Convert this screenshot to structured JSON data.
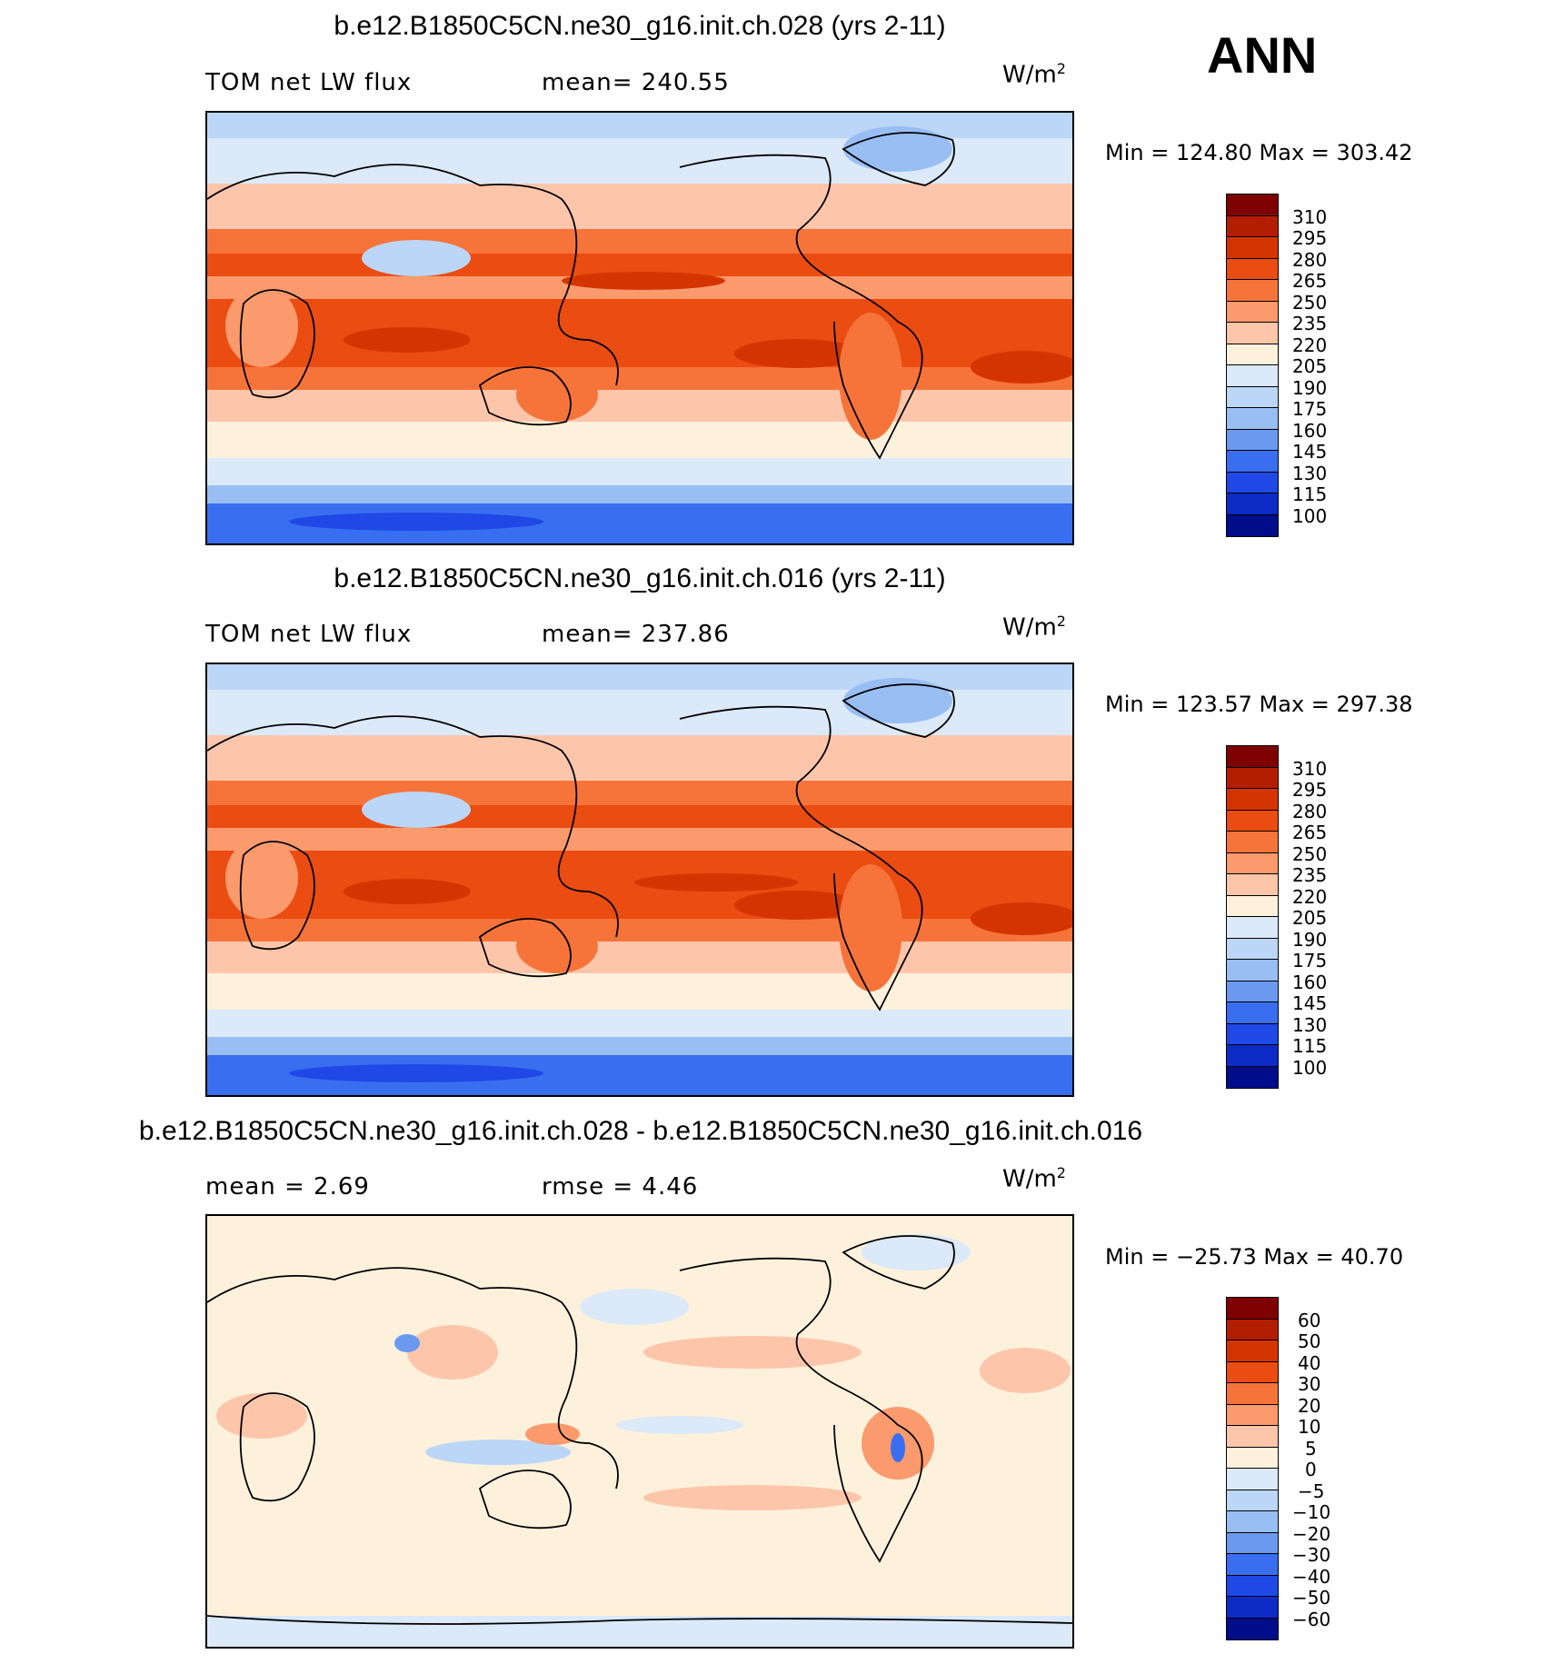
{
  "season": "ANN",
  "units_base": "W/m",
  "units_exp": "2",
  "panels": [
    {
      "title": "b.e12.B1850C5CN.ne30_g16.init.ch.028 (yrs 2-11)",
      "left_label": "TOM net LW flux",
      "stat_label": "mean= 240.55",
      "minmax": "Min  =  124.80  Max  =  303.42",
      "cbar_labels": [
        "310",
        "295",
        "280",
        "265",
        "250",
        "235",
        "220",
        "205",
        "190",
        "175",
        "160",
        "145",
        "130",
        "115",
        "100"
      ]
    },
    {
      "title": "b.e12.B1850C5CN.ne30_g16.init.ch.016 (yrs 2-11)",
      "left_label": "TOM net LW flux",
      "stat_label": "mean= 237.86",
      "minmax": "Min  =  123.57  Max  =  297.38",
      "cbar_labels": [
        "310",
        "295",
        "280",
        "265",
        "250",
        "235",
        "220",
        "205",
        "190",
        "175",
        "160",
        "145",
        "130",
        "115",
        "100"
      ]
    },
    {
      "title": "b.e12.B1850C5CN.ne30_g16.init.ch.028 - b.e12.B1850C5CN.ne30_g16.init.ch.016",
      "left_label": "mean =     2.69",
      "stat_label": "rmse =     4.46",
      "minmax": "Min  =  −25.73  Max  =     40.70",
      "cbar_labels": [
        "60",
        "50",
        "40",
        "30",
        "20",
        "10",
        "5",
        "0",
        "−5",
        "−10",
        "−20",
        "−30",
        "−40",
        "−50",
        "−60"
      ]
    }
  ],
  "colors": {
    "palette": [
      "#7f0000",
      "#b31e00",
      "#d43500",
      "#ea4c12",
      "#f6743a",
      "#fb9a6c",
      "#fdc6aa",
      "#fef1dc",
      "#dbe9f8",
      "#bcd6f7",
      "#99bef4",
      "#6b99f0",
      "#3a6ef0",
      "#1f48e6",
      "#0d2bc5",
      "#000d8a"
    ],
    "land_line": "#000000"
  }
}
